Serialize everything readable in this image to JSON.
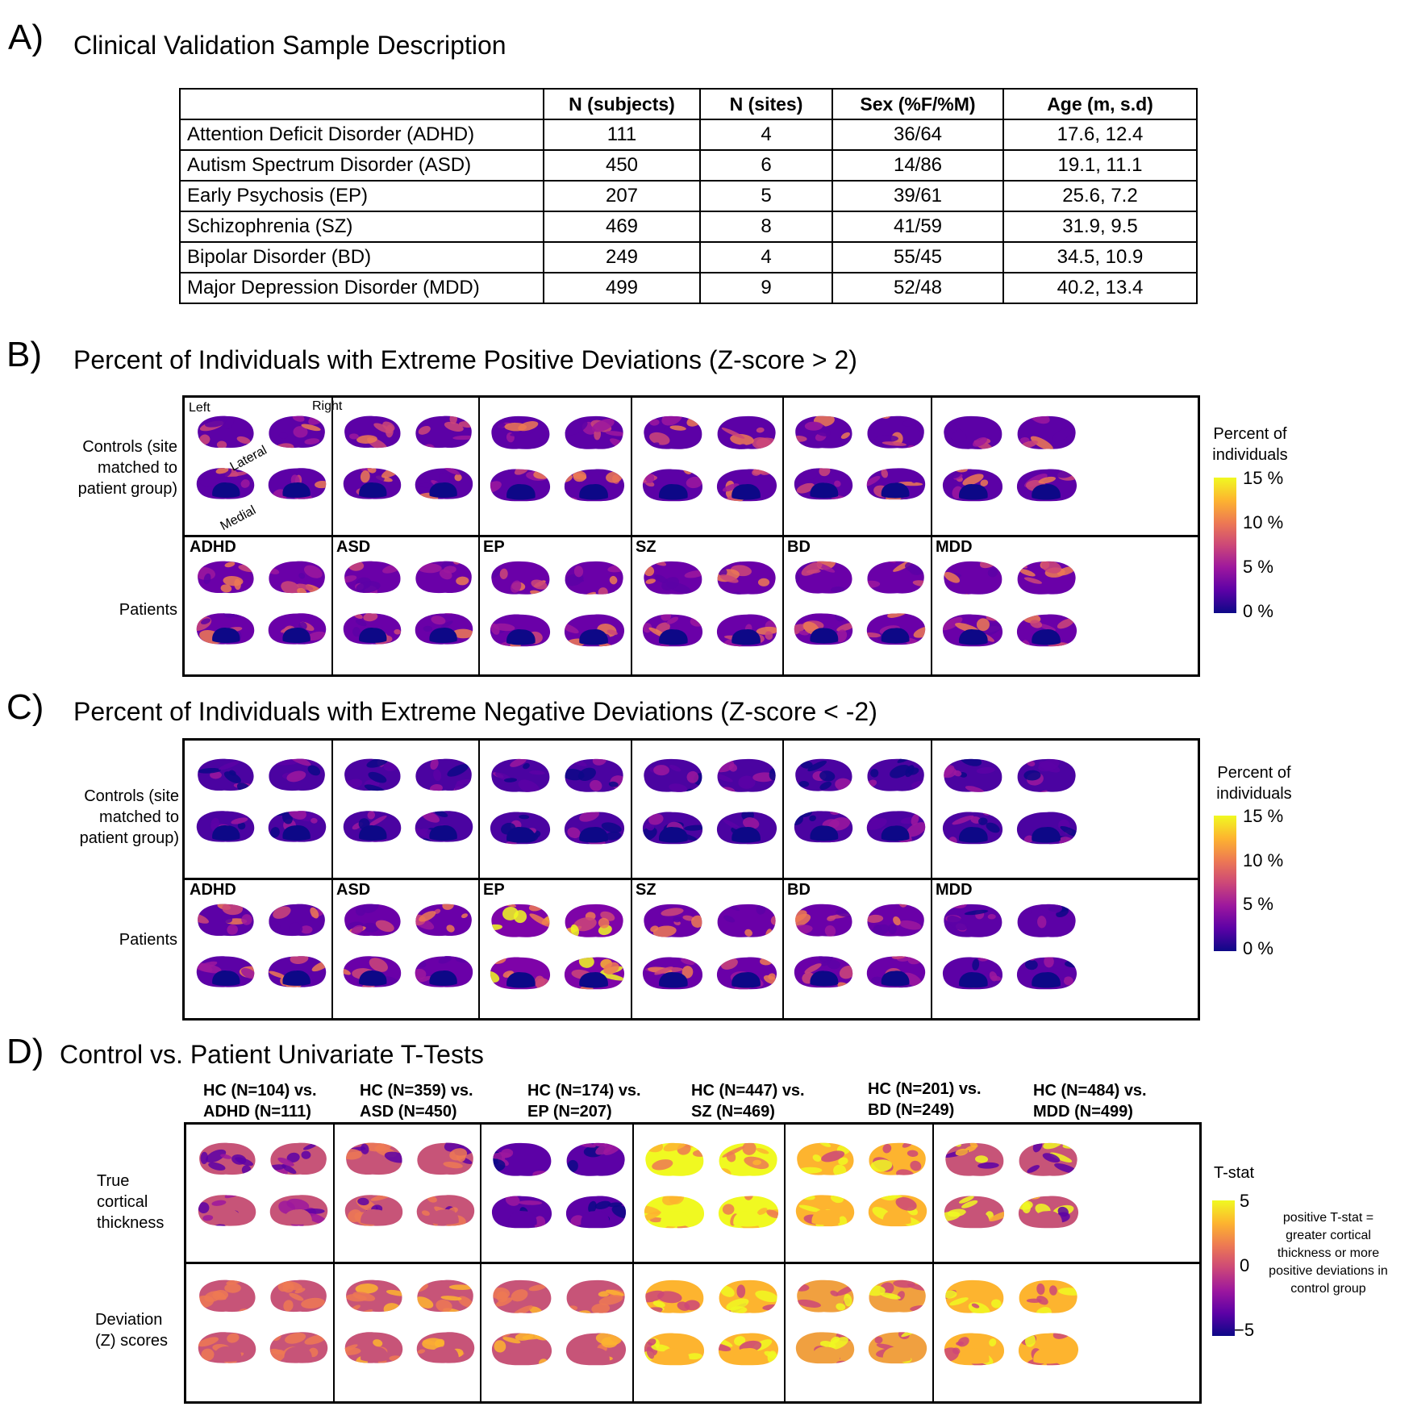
{
  "panelA": {
    "letter": "A)",
    "title": "Clinical Validation Sample Description",
    "headers": [
      "",
      "N (subjects)",
      "N (sites)",
      "Sex (%F/%M)",
      "Age (m, s.d)"
    ],
    "rows": [
      [
        "Attention Deficit Disorder (ADHD)",
        "111",
        "4",
        "36/64",
        "17.6, 12.4"
      ],
      [
        "Autism Spectrum Disorder (ASD)",
        "450",
        "6",
        "14/86",
        "19.1, 11.1"
      ],
      [
        "Early Psychosis (EP)",
        "207",
        "5",
        "39/61",
        "25.6, 7.2"
      ],
      [
        "Schizophrenia (SZ)",
        "469",
        "8",
        "41/59",
        "31.9, 9.5"
      ],
      [
        "Bipolar Disorder (BD)",
        "249",
        "4",
        "55/45",
        "34.5, 10.9"
      ],
      [
        "Major Depression Disorder (MDD)",
        "499",
        "9",
        "52/48",
        "40.2, 13.4"
      ]
    ]
  },
  "panelB": {
    "letter": "B)",
    "title": "Percent of Individuals with Extreme Positive Deviations (Z-score > 2)",
    "row_labels": [
      "Controls (site matched to patient group)",
      "Patients"
    ],
    "groups": [
      "ADHD",
      "ASD",
      "EP",
      "SZ",
      "BD",
      "MDD"
    ],
    "orientation": {
      "left": "Left",
      "right": "Right",
      "lateral": "Lateral",
      "medial": "Medial"
    },
    "colorbar": {
      "title": "Percent of individuals",
      "ticks": [
        "15 %",
        "10 %",
        "5 %",
        "0 %"
      ]
    }
  },
  "panelC": {
    "letter": "C)",
    "title": "Percent of Individuals with Extreme Negative Deviations (Z-score < -2)",
    "row_labels": [
      "Controls (site matched to patient group)",
      "Patients"
    ],
    "groups": [
      "ADHD",
      "ASD",
      "EP",
      "SZ",
      "BD",
      "MDD"
    ],
    "colorbar": {
      "title": "Percent of individuals",
      "ticks": [
        "15 %",
        "10 %",
        "5 %",
        "0 %"
      ]
    }
  },
  "panelD": {
    "letter": "D)",
    "title": "Control vs. Patient Univariate T-Tests",
    "column_headers": [
      [
        "HC (N=104) vs.",
        "ADHD (N=111)"
      ],
      [
        "HC (N=359) vs.",
        "ASD (N=450)"
      ],
      [
        "HC (N=174) vs.",
        "EP (N=207)"
      ],
      [
        "HC (N=447) vs.",
        "SZ (N=469)"
      ],
      [
        "HC (N=201) vs.",
        "BD (N=249)"
      ],
      [
        "HC (N=484) vs.",
        "MDD (N=499)"
      ]
    ],
    "row_labels": [
      "True cortical thickness",
      "Deviation (Z) scores"
    ],
    "colorbar": {
      "title": "T-stat",
      "ticks": [
        "5",
        "0",
        "−5"
      ]
    },
    "note": "positive T-stat = greater cortical thickness or more positive deviations in control group"
  },
  "colors": {
    "plasma": [
      "#0d0887",
      "#5c01a6",
      "#9c179e",
      "#cc4778",
      "#ed7953",
      "#fdb42f",
      "#f0f921"
    ],
    "thickness_bg": "#c75478"
  }
}
